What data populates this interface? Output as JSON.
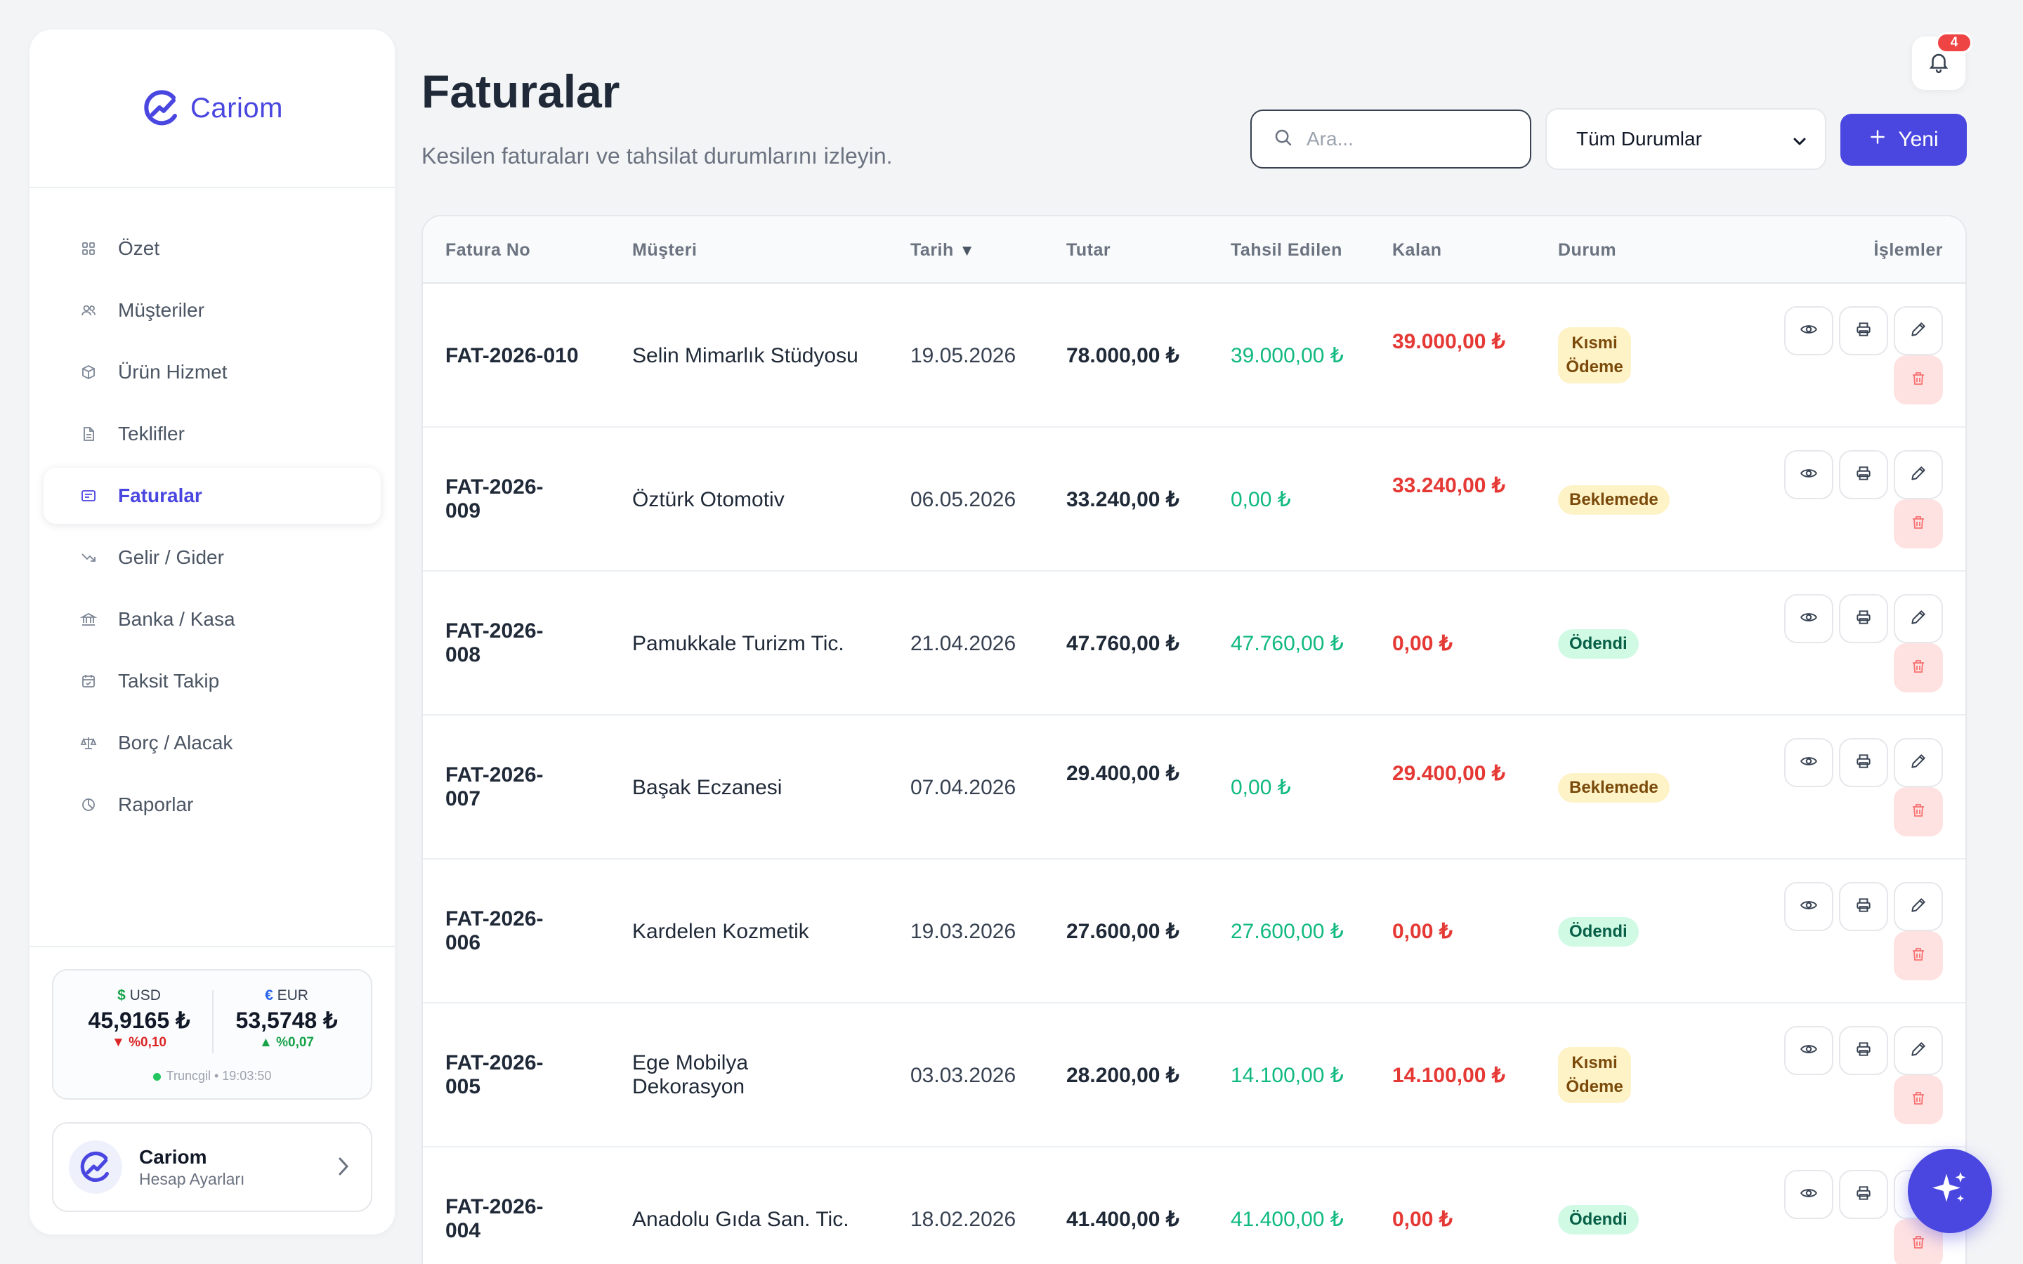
{
  "app": {
    "name": "Cariom",
    "brand_color": "#4a46e0"
  },
  "sidebar": {
    "items": [
      {
        "label": "Özet",
        "icon": "grid-icon",
        "active": false
      },
      {
        "label": "Müşteriler",
        "icon": "users-icon",
        "active": false
      },
      {
        "label": "Ürün Hizmet",
        "icon": "box-icon",
        "active": false
      },
      {
        "label": "Teklifler",
        "icon": "document-icon",
        "active": false
      },
      {
        "label": "Faturalar",
        "icon": "invoice-icon",
        "active": true
      },
      {
        "label": "Gelir / Gider",
        "icon": "trend-down-icon",
        "active": false
      },
      {
        "label": "Banka / Kasa",
        "icon": "bank-icon",
        "active": false
      },
      {
        "label": "Taksit Takip",
        "icon": "calendar-check-icon",
        "active": false
      },
      {
        "label": "Borç / Alacak",
        "icon": "scale-icon",
        "active": false
      },
      {
        "label": "Raporlar",
        "icon": "pie-chart-icon",
        "active": false
      }
    ],
    "currency": {
      "usd": {
        "symbol": "$",
        "code": "USD",
        "value": "45,9165 ₺",
        "change": "%0,10",
        "direction": "down"
      },
      "eur": {
        "symbol": "€",
        "code": "EUR",
        "value": "53,5748 ₺",
        "change": "%0,07",
        "direction": "up"
      },
      "source": "Truncgil • 19:03:50"
    },
    "account": {
      "name": "Cariom",
      "subtitle": "Hesap Ayarları"
    }
  },
  "header": {
    "title": "Faturalar",
    "subtitle": "Kesilen faturaları ve tahsilat durumlarını izleyin.",
    "notification_count": "4",
    "search_placeholder": "Ara...",
    "status_filter": "Tüm Durumlar",
    "new_button": "Yeni"
  },
  "table": {
    "columns": {
      "invoice_no": "Fatura No",
      "customer": "Müşteri",
      "date": "Tarih",
      "amount": "Tutar",
      "collected": "Tahsil Edilen",
      "remaining": "Kalan",
      "status": "Durum",
      "actions": "İşlemler"
    },
    "sort_indicator": "▼",
    "rows": [
      {
        "no": "FAT-2026-010",
        "customer": "Selin Mimarlık Stüdyosu",
        "date": "19.05.2026",
        "amount": "78.000,00 ₺",
        "collected": "39.000,00 ₺",
        "remaining": "39.000,00 ₺",
        "status": "Kısmi Ödeme",
        "status_type": "partial"
      },
      {
        "no": "FAT-2026-009",
        "customer": "Öztürk Otomotiv",
        "date": "06.05.2026",
        "amount": "33.240,00 ₺",
        "collected": "0,00 ₺",
        "remaining": "33.240,00 ₺",
        "status": "Beklemede",
        "status_type": "pending"
      },
      {
        "no": "FAT-2026-008",
        "customer": "Pamukkale Turizm Tic.",
        "date": "21.04.2026",
        "amount": "47.760,00 ₺",
        "collected": "47.760,00 ₺",
        "remaining": "0,00 ₺",
        "status": "Ödendi",
        "status_type": "paid"
      },
      {
        "no": "FAT-2026-007",
        "customer": "Başak Eczanesi",
        "date": "07.04.2026",
        "amount": "29.400,00 ₺",
        "collected": "0,00 ₺",
        "remaining": "29.400,00 ₺",
        "status": "Beklemede",
        "status_type": "pending"
      },
      {
        "no": "FAT-2026-006",
        "customer": "Kardelen Kozmetik",
        "date": "19.03.2026",
        "amount": "27.600,00 ₺",
        "collected": "27.600,00 ₺",
        "remaining": "0,00 ₺",
        "status": "Ödendi",
        "status_type": "paid"
      },
      {
        "no": "FAT-2026-005",
        "customer": "Ege Mobilya Dekorasyon",
        "date": "03.03.2026",
        "amount": "28.200,00 ₺",
        "collected": "14.100,00 ₺",
        "remaining": "14.100,00 ₺",
        "status": "Kısmi Ödeme",
        "status_type": "partial"
      },
      {
        "no": "FAT-2026-004",
        "customer": "Anadolu Gıda San. Tic.",
        "date": "18.02.2026",
        "amount": "41.400,00 ₺",
        "collected": "41.400,00 ₺",
        "remaining": "0,00 ₺",
        "status": "Ödendi",
        "status_type": "paid"
      }
    ]
  },
  "colors": {
    "collected": "#10b981",
    "remaining": "#e53935",
    "pending_bg": "#fef3c7",
    "paid_bg": "#d1fae5"
  }
}
